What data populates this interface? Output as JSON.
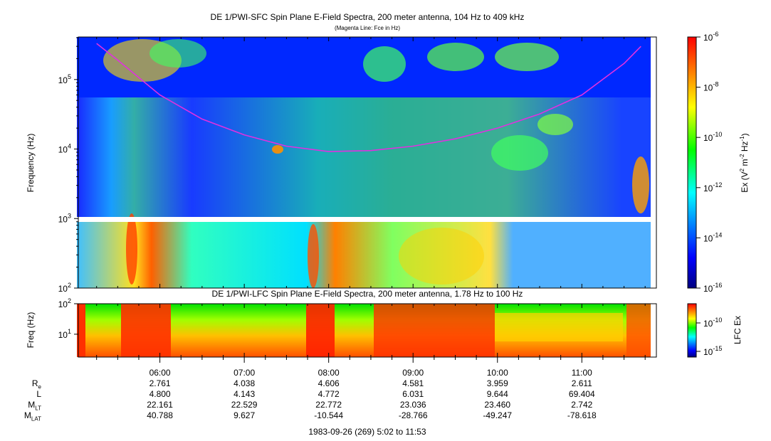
{
  "title": "DE 1/PWI-SFC  Spin Plane E-Field Spectra, 200 meter antenna, 104 Hz to 409 kHz",
  "subtitle": "(Magenta Line: Fce in Hz)",
  "lfc_title": "DE 1/PWI-LFC  Spin Plane E-Field Spectra, 200 meter antenna, 1.78 Hz to 100 Hz",
  "footer": "1983-09-26 (269) 5:02 to 11:53",
  "colors": {
    "fce_line": "#e030e0",
    "colormap": [
      "#00007f",
      "#0000ff",
      "#00ffff",
      "#00ff00",
      "#ffff00",
      "#ff8000",
      "#ff0000"
    ]
  },
  "chart_data": [
    {
      "type": "heatmap",
      "panel": "SFC",
      "ylabel": "Frequency (Hz)",
      "yscale": "log",
      "ylim": [
        100,
        409000
      ],
      "ytick_labels": [
        "10^2",
        "10^3",
        "10^4",
        "10^5"
      ],
      "colorbar": {
        "label": "Ex (V^2 m^-2 Hz^-1)",
        "scale": "log",
        "range": [
          1e-16,
          1e-06
        ],
        "tick_labels": [
          "10^-6",
          "10^-8",
          "10^-10",
          "10^-12",
          "10^-14",
          "10^-16"
        ]
      },
      "series": [
        {
          "name": "Fce",
          "x": [
            "5:15",
            "5:30",
            "6:00",
            "6:30",
            "7:00",
            "7:30",
            "8:00",
            "8:30",
            "9:00",
            "9:30",
            "10:00",
            "10:30",
            "11:00",
            "11:30",
            "11:42"
          ],
          "values": [
            330000,
            190000,
            60000,
            27000,
            16000,
            11000,
            9200,
            9500,
            11000,
            14000,
            20000,
            32000,
            60000,
            170000,
            300000
          ]
        }
      ]
    },
    {
      "type": "heatmap",
      "panel": "LFC",
      "ylabel": "Freq (Hz)",
      "yscale": "log",
      "ylim": [
        1.78,
        100
      ],
      "ytick_labels": [
        "10^1",
        "10^2"
      ],
      "colorbar": {
        "label": "LFC Ex",
        "scale": "log",
        "tick_labels": [
          "10^-10",
          "10^-15"
        ]
      }
    }
  ],
  "xaxis": {
    "ticks": [
      "06:00",
      "07:00",
      "08:00",
      "09:00",
      "10:00",
      "11:00"
    ]
  },
  "ephemeris": {
    "rows": [
      {
        "label": "R",
        "sub": "e",
        "values": [
          "2.761",
          "4.038",
          "4.606",
          "4.581",
          "3.959",
          "2.611"
        ]
      },
      {
        "label": "L",
        "sub": "",
        "values": [
          "4.800",
          "4.143",
          "4.772",
          "6.031",
          "9.644",
          "69.404"
        ]
      },
      {
        "label": "M",
        "sub": "LT",
        "values": [
          "22.161",
          "22.529",
          "22.772",
          "23.036",
          "23.460",
          "2.742"
        ]
      },
      {
        "label": "M",
        "sub": "LAT",
        "values": [
          "40.788",
          "9.627",
          "-10.544",
          "-28.766",
          "-49.247",
          "-78.618"
        ]
      }
    ]
  }
}
